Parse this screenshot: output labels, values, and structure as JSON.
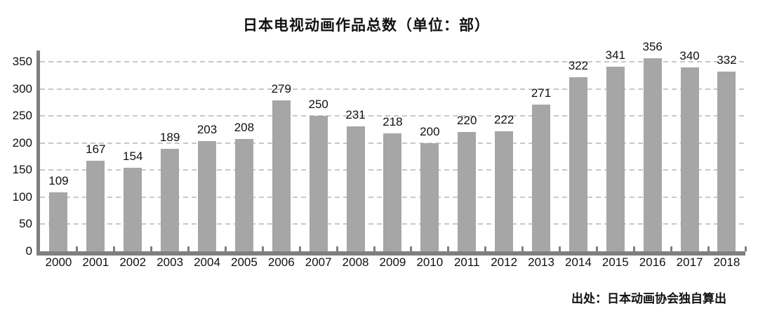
{
  "chart_data": {
    "type": "bar",
    "title": "日本电视动画作品总数（单位：部）",
    "categories": [
      "2000",
      "2001",
      "2002",
      "2003",
      "2004",
      "2005",
      "2006",
      "2007",
      "2008",
      "2009",
      "2010",
      "2011",
      "2012",
      "2013",
      "2014",
      "2015",
      "2016",
      "2017",
      "2018"
    ],
    "values": [
      109,
      167,
      154,
      189,
      203,
      208,
      279,
      250,
      231,
      218,
      200,
      220,
      222,
      271,
      322,
      341,
      356,
      340,
      332
    ],
    "xlabel": "",
    "ylabel": "",
    "ylim": [
      0,
      350
    ],
    "yticks": [
      0,
      50,
      100,
      150,
      200,
      250,
      300,
      350
    ],
    "grid": "horizontal-dashed",
    "legend": "none",
    "bar_value_labels": true,
    "source_note": "出处：日本动画协会独自算出",
    "colors": {
      "bar": "#a6a6a6",
      "axis": "#7f7f7f",
      "gridline": "#c8c8c8",
      "text": "#111111",
      "background": "#ffffff"
    }
  }
}
